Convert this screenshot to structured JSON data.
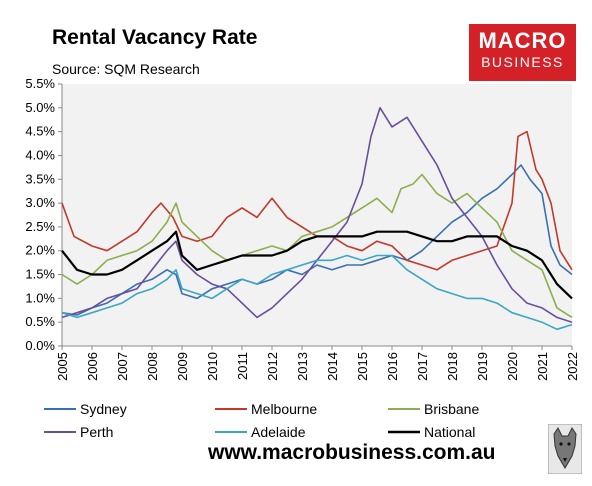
{
  "logo": {
    "line1": "MACRO",
    "line2": "BUSINESS"
  },
  "website": "www.macrobusiness.com.au",
  "chart_data": {
    "type": "line",
    "title": "Rental Vacancy Rate",
    "subtitle": "Source: SQM Research",
    "y_ticks": [
      "0.0%",
      "0.5%",
      "1.0%",
      "1.5%",
      "2.0%",
      "2.5%",
      "3.0%",
      "3.5%",
      "4.0%",
      "4.5%",
      "5.0%",
      "5.5%"
    ],
    "x_ticks": [
      "2005",
      "2006",
      "2007",
      "2008",
      "2009",
      "2010",
      "2011",
      "2012",
      "2013",
      "2014",
      "2015",
      "2016",
      "2017",
      "2018",
      "2019",
      "2020",
      "2021",
      "2022"
    ],
    "ylim": [
      0,
      5.5
    ],
    "xlim": [
      2005,
      2022
    ],
    "grid": false,
    "legend_position": "bottom",
    "series": [
      {
        "name": "Sydney",
        "color": "#3a6fb0",
        "points": [
          [
            2005,
            0.7
          ],
          [
            2005.5,
            0.65
          ],
          [
            2006,
            0.8
          ],
          [
            2006.5,
            0.9
          ],
          [
            2007,
            1.1
          ],
          [
            2007.5,
            1.3
          ],
          [
            2008,
            1.4
          ],
          [
            2008.5,
            1.6
          ],
          [
            2008.8,
            1.5
          ],
          [
            2009,
            1.1
          ],
          [
            2009.5,
            1.0
          ],
          [
            2010,
            1.2
          ],
          [
            2010.5,
            1.3
          ],
          [
            2011,
            1.4
          ],
          [
            2011.5,
            1.3
          ],
          [
            2012,
            1.4
          ],
          [
            2012.5,
            1.6
          ],
          [
            2013,
            1.5
          ],
          [
            2013.5,
            1.7
          ],
          [
            2014,
            1.6
          ],
          [
            2014.5,
            1.7
          ],
          [
            2015,
            1.7
          ],
          [
            2015.5,
            1.8
          ],
          [
            2016,
            1.9
          ],
          [
            2016.5,
            1.8
          ],
          [
            2017,
            2.0
          ],
          [
            2017.5,
            2.3
          ],
          [
            2018,
            2.6
          ],
          [
            2018.5,
            2.8
          ],
          [
            2019,
            3.1
          ],
          [
            2019.5,
            3.3
          ],
          [
            2020,
            3.6
          ],
          [
            2020.3,
            3.8
          ],
          [
            2020.6,
            3.5
          ],
          [
            2021,
            3.2
          ],
          [
            2021.3,
            2.1
          ],
          [
            2021.6,
            1.7
          ],
          [
            2022,
            1.5
          ]
        ]
      },
      {
        "name": "Melbourne",
        "color": "#c0392b",
        "points": [
          [
            2005,
            3.0
          ],
          [
            2005.4,
            2.3
          ],
          [
            2006,
            2.1
          ],
          [
            2006.5,
            2.0
          ],
          [
            2007,
            2.2
          ],
          [
            2007.5,
            2.4
          ],
          [
            2008,
            2.8
          ],
          [
            2008.3,
            3.0
          ],
          [
            2008.7,
            2.7
          ],
          [
            2009,
            2.3
          ],
          [
            2009.5,
            2.2
          ],
          [
            2010,
            2.3
          ],
          [
            2010.5,
            2.7
          ],
          [
            2011,
            2.9
          ],
          [
            2011.5,
            2.7
          ],
          [
            2012,
            3.1
          ],
          [
            2012.5,
            2.7
          ],
          [
            2013,
            2.5
          ],
          [
            2013.5,
            2.3
          ],
          [
            2014,
            2.3
          ],
          [
            2014.5,
            2.1
          ],
          [
            2015,
            2.0
          ],
          [
            2015.5,
            2.2
          ],
          [
            2016,
            2.1
          ],
          [
            2016.5,
            1.8
          ],
          [
            2017,
            1.7
          ],
          [
            2017.5,
            1.6
          ],
          [
            2018,
            1.8
          ],
          [
            2018.5,
            1.9
          ],
          [
            2019,
            2.0
          ],
          [
            2019.5,
            2.1
          ],
          [
            2020,
            3.0
          ],
          [
            2020.2,
            4.4
          ],
          [
            2020.5,
            4.5
          ],
          [
            2020.8,
            3.7
          ],
          [
            2021,
            3.5
          ],
          [
            2021.3,
            3.0
          ],
          [
            2021.6,
            2.0
          ],
          [
            2022,
            1.6
          ]
        ]
      },
      {
        "name": "Brisbane",
        "color": "#8dae4e",
        "points": [
          [
            2005,
            1.5
          ],
          [
            2005.5,
            1.3
          ],
          [
            2006,
            1.5
          ],
          [
            2006.5,
            1.8
          ],
          [
            2007,
            1.9
          ],
          [
            2007.5,
            2.0
          ],
          [
            2008,
            2.2
          ],
          [
            2008.5,
            2.6
          ],
          [
            2008.8,
            3.0
          ],
          [
            2009,
            2.6
          ],
          [
            2009.5,
            2.3
          ],
          [
            2010,
            2.0
          ],
          [
            2010.5,
            1.8
          ],
          [
            2011,
            1.9
          ],
          [
            2011.5,
            2.0
          ],
          [
            2012,
            2.1
          ],
          [
            2012.5,
            2.0
          ],
          [
            2013,
            2.3
          ],
          [
            2013.5,
            2.4
          ],
          [
            2014,
            2.5
          ],
          [
            2014.5,
            2.7
          ],
          [
            2015,
            2.9
          ],
          [
            2015.5,
            3.1
          ],
          [
            2016,
            2.8
          ],
          [
            2016.3,
            3.3
          ],
          [
            2016.7,
            3.4
          ],
          [
            2017,
            3.6
          ],
          [
            2017.5,
            3.2
          ],
          [
            2018,
            3.0
          ],
          [
            2018.5,
            3.2
          ],
          [
            2019,
            2.9
          ],
          [
            2019.5,
            2.6
          ],
          [
            2020,
            2.0
          ],
          [
            2020.5,
            1.8
          ],
          [
            2021,
            1.6
          ],
          [
            2021.5,
            0.8
          ],
          [
            2022,
            0.6
          ]
        ]
      },
      {
        "name": "Perth",
        "color": "#6a4e9c",
        "points": [
          [
            2005,
            0.6
          ],
          [
            2005.5,
            0.7
          ],
          [
            2006,
            0.8
          ],
          [
            2006.5,
            1.0
          ],
          [
            2007,
            1.1
          ],
          [
            2007.5,
            1.2
          ],
          [
            2008,
            1.6
          ],
          [
            2008.5,
            2.0
          ],
          [
            2008.8,
            2.2
          ],
          [
            2009,
            1.8
          ],
          [
            2009.5,
            1.5
          ],
          [
            2010,
            1.3
          ],
          [
            2010.5,
            1.2
          ],
          [
            2011,
            0.9
          ],
          [
            2011.5,
            0.6
          ],
          [
            2012,
            0.8
          ],
          [
            2012.5,
            1.1
          ],
          [
            2013,
            1.4
          ],
          [
            2013.5,
            1.8
          ],
          [
            2014,
            2.2
          ],
          [
            2014.5,
            2.6
          ],
          [
            2015,
            3.4
          ],
          [
            2015.3,
            4.4
          ],
          [
            2015.6,
            5.0
          ],
          [
            2016,
            4.6
          ],
          [
            2016.5,
            4.8
          ],
          [
            2017,
            4.3
          ],
          [
            2017.5,
            3.8
          ],
          [
            2018,
            3.1
          ],
          [
            2018.5,
            2.7
          ],
          [
            2019,
            2.3
          ],
          [
            2019.5,
            1.7
          ],
          [
            2020,
            1.2
          ],
          [
            2020.5,
            0.9
          ],
          [
            2021,
            0.8
          ],
          [
            2021.5,
            0.6
          ],
          [
            2022,
            0.5
          ]
        ]
      },
      {
        "name": "Adelaide",
        "color": "#3aa6c4",
        "points": [
          [
            2005,
            0.7
          ],
          [
            2005.5,
            0.6
          ],
          [
            2006,
            0.7
          ],
          [
            2006.5,
            0.8
          ],
          [
            2007,
            0.9
          ],
          [
            2007.5,
            1.1
          ],
          [
            2008,
            1.2
          ],
          [
            2008.5,
            1.4
          ],
          [
            2008.8,
            1.6
          ],
          [
            2009,
            1.2
          ],
          [
            2009.5,
            1.1
          ],
          [
            2010,
            1.0
          ],
          [
            2010.5,
            1.2
          ],
          [
            2011,
            1.4
          ],
          [
            2011.5,
            1.3
          ],
          [
            2012,
            1.5
          ],
          [
            2012.5,
            1.6
          ],
          [
            2013,
            1.7
          ],
          [
            2013.5,
            1.8
          ],
          [
            2014,
            1.8
          ],
          [
            2014.5,
            1.9
          ],
          [
            2015,
            1.8
          ],
          [
            2015.5,
            1.9
          ],
          [
            2016,
            1.9
          ],
          [
            2016.5,
            1.6
          ],
          [
            2017,
            1.4
          ],
          [
            2017.5,
            1.2
          ],
          [
            2018,
            1.1
          ],
          [
            2018.5,
            1.0
          ],
          [
            2019,
            1.0
          ],
          [
            2019.5,
            0.9
          ],
          [
            2020,
            0.7
          ],
          [
            2020.5,
            0.6
          ],
          [
            2021,
            0.5
          ],
          [
            2021.5,
            0.35
          ],
          [
            2022,
            0.45
          ]
        ]
      },
      {
        "name": "National",
        "color": "#000000",
        "points": [
          [
            2005,
            2.0
          ],
          [
            2005.5,
            1.6
          ],
          [
            2006,
            1.5
          ],
          [
            2006.5,
            1.5
          ],
          [
            2007,
            1.6
          ],
          [
            2007.5,
            1.8
          ],
          [
            2008,
            2.0
          ],
          [
            2008.5,
            2.2
          ],
          [
            2008.8,
            2.4
          ],
          [
            2009,
            1.9
          ],
          [
            2009.5,
            1.6
          ],
          [
            2010,
            1.7
          ],
          [
            2010.5,
            1.8
          ],
          [
            2011,
            1.9
          ],
          [
            2011.5,
            1.9
          ],
          [
            2012,
            1.9
          ],
          [
            2012.5,
            2.0
          ],
          [
            2013,
            2.2
          ],
          [
            2013.5,
            2.3
          ],
          [
            2014,
            2.3
          ],
          [
            2014.5,
            2.3
          ],
          [
            2015,
            2.3
          ],
          [
            2015.5,
            2.4
          ],
          [
            2016,
            2.4
          ],
          [
            2016.5,
            2.4
          ],
          [
            2017,
            2.3
          ],
          [
            2017.5,
            2.2
          ],
          [
            2018,
            2.2
          ],
          [
            2018.5,
            2.3
          ],
          [
            2019,
            2.3
          ],
          [
            2019.5,
            2.3
          ],
          [
            2020,
            2.1
          ],
          [
            2020.5,
            2.0
          ],
          [
            2021,
            1.8
          ],
          [
            2021.5,
            1.3
          ],
          [
            2022,
            1.0
          ]
        ]
      }
    ]
  }
}
